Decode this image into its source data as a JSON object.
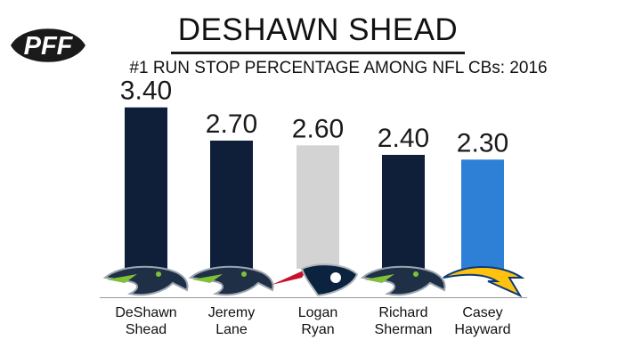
{
  "brand": {
    "logo_text": "PFF",
    "logo_bg": "#1a1a1a",
    "logo_fg": "#ffffff"
  },
  "header": {
    "title": "DESHAWN SHEAD",
    "subtitle": "#1 RUN STOP PERCENTAGE AMONG NFL CBs: 2016"
  },
  "chart_data": {
    "type": "bar",
    "title": "DESHAWN SHEAD",
    "subtitle": "#1 RUN STOP PERCENTAGE AMONG NFL CBs: 2016",
    "xlabel": "",
    "ylabel": "",
    "ylim": [
      0,
      3.6
    ],
    "grid": false,
    "categories": [
      [
        "DeShawn",
        "Shead"
      ],
      [
        "Jeremy",
        "Lane"
      ],
      [
        "Logan",
        "Ryan"
      ],
      [
        "Richard",
        "Sherman"
      ],
      [
        "Casey",
        "Hayward"
      ]
    ],
    "values": [
      3.4,
      2.7,
      2.6,
      2.4,
      2.3
    ],
    "value_labels": [
      "3.40",
      "2.70",
      "2.60",
      "2.40",
      "2.30"
    ],
    "bar_colors": [
      "#0f1f3a",
      "#0f1f3a",
      "#d3d3d3",
      "#0f1f3a",
      "#2e7fd6"
    ],
    "team_logos": [
      "seahawks-logo",
      "seahawks-logo",
      "patriots-logo",
      "seahawks-logo",
      "chargers-logo"
    ]
  }
}
